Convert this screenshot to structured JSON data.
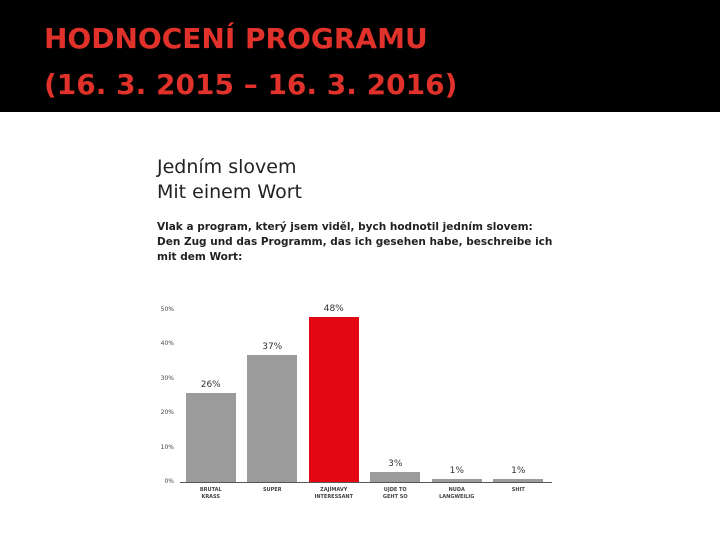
{
  "header": {
    "title": [
      "HODNOCENÍ PROGRAMU",
      "(16. 3. 2015 – 16. 3. 2016)"
    ]
  },
  "chart_data": {
    "type": "bar",
    "title": [
      "Jedním slovem",
      "Mit einem Wort"
    ],
    "subtitle": [
      "Vlak a program, který jsem viděl, bych hodnotil jedním slovem:",
      "Den Zug und das Programm, das ich gesehen habe, beschreibe ich",
      "mit dem Wort:"
    ],
    "categories": [
      "BRUTAL\nKRASS",
      "SUPER",
      "ZAJÍMAVÝ\nINTERESSANT",
      "UJDE TO\nGEHT SO",
      "NUDA\nLANGWEILIG",
      "SHIT"
    ],
    "values": [
      26,
      37,
      48,
      3,
      1,
      1
    ],
    "value_labels": [
      "26%",
      "37%",
      "48%",
      "3%",
      "1%",
      "1%"
    ],
    "colors": [
      "#9b9b9b",
      "#9b9b9b",
      "#e30613",
      "#9b9b9b",
      "#9b9b9b",
      "#9b9b9b"
    ],
    "ylim": [
      0,
      50
    ],
    "yticks": [
      {
        "value": 0,
        "label": "0%"
      },
      {
        "value": 10,
        "label": "10%"
      },
      {
        "value": 20,
        "label": "20%"
      },
      {
        "value": 30,
        "label": "30%"
      },
      {
        "value": 40,
        "label": "40%"
      },
      {
        "value": 50,
        "label": "50%"
      }
    ]
  }
}
